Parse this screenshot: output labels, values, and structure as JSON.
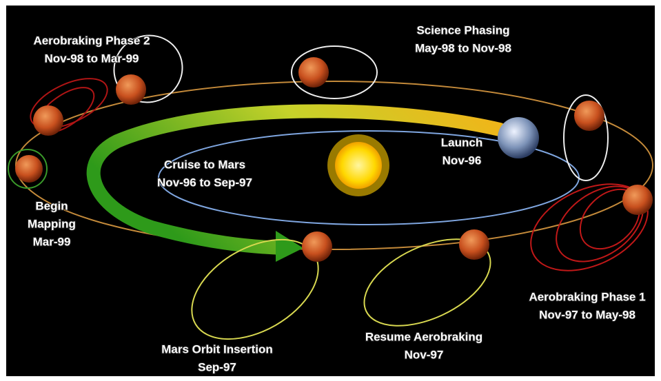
{
  "labels": [
    {
      "lines": [
        "Aerobraking Phase 2",
        "Nov-98 to Mar-99"
      ]
    },
    {
      "lines": [
        "Science Phasing",
        "May-98 to Nov-98"
      ]
    },
    {
      "lines": [
        "Launch",
        "Nov-96"
      ]
    },
    {
      "lines": [
        "Cruise to Mars",
        "Nov-96 to Sep-97"
      ]
    },
    {
      "lines": [
        "Begin",
        "Mapping",
        "Mar-99"
      ]
    },
    {
      "lines": [
        "Aerobraking Phase 1",
        "Nov-97 to May-98"
      ]
    },
    {
      "lines": [
        "Resume Aerobraking",
        "Nov-97"
      ]
    },
    {
      "lines": [
        "Mars Orbit Insertion",
        "Sep-97"
      ]
    }
  ]
}
